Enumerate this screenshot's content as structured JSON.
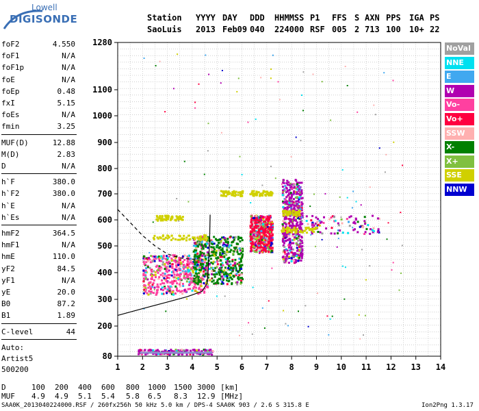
{
  "logo": {
    "line1": "Lowell",
    "line2": "DIGISONDE"
  },
  "header": {
    "row1": [
      "Station",
      "YYYY",
      "DAY",
      "DDD",
      "HHMMSS",
      "P1",
      "FFS",
      "S",
      "AXN",
      "PPS",
      "IGA",
      "PS"
    ],
    "row2": [
      "SaoLuis",
      "2013",
      "Feb09",
      "040",
      "224000",
      "RSF",
      "005",
      "2",
      "713",
      "100",
      "10+",
      "22"
    ]
  },
  "params": {
    "group1": [
      {
        "name": "foF2",
        "value": "4.550"
      },
      {
        "name": "foF1",
        "value": "N/A"
      },
      {
        "name": "foF1p",
        "value": "N/A"
      },
      {
        "name": "foE",
        "value": "N/A"
      },
      {
        "name": "foEp",
        "value": "0.48"
      },
      {
        "name": "fxI",
        "value": "5.15"
      },
      {
        "name": "foEs",
        "value": "N/A"
      },
      {
        "name": "fmin",
        "value": "3.25"
      }
    ],
    "group2": [
      {
        "name": "MUF(D)",
        "value": "12.88"
      },
      {
        "name": "M(D)",
        "value": "2.83"
      },
      {
        "name": "D",
        "value": "N/A"
      }
    ],
    "group3": [
      {
        "name": "h`F",
        "value": "380.0"
      },
      {
        "name": "h`F2",
        "value": "380.0"
      },
      {
        "name": "h`E",
        "value": "N/A"
      },
      {
        "name": "h`Es",
        "value": "N/A"
      }
    ],
    "group4": [
      {
        "name": "hmF2",
        "value": "364.5"
      },
      {
        "name": "hmF1",
        "value": "N/A"
      },
      {
        "name": "hmE",
        "value": "110.0"
      },
      {
        "name": "yF2",
        "value": "84.5"
      },
      {
        "name": "yF1",
        "value": "N/A"
      },
      {
        "name": "yE",
        "value": "20.0"
      },
      {
        "name": "B0",
        "value": "87.2"
      },
      {
        "name": "B1",
        "value": "1.89"
      }
    ],
    "group5": [
      {
        "name": "C-level",
        "value": "44"
      }
    ],
    "auto": [
      "Auto:",
      "Artist5",
      "500200"
    ]
  },
  "legend": [
    {
      "label": "NoVal",
      "color": "#a0a0a0"
    },
    {
      "label": "NNE",
      "color": "#00e0f0"
    },
    {
      "label": "E",
      "color": "#40a8f0"
    },
    {
      "label": "W",
      "color": "#b000b0"
    },
    {
      "label": "Vo-",
      "color": "#ff40a0"
    },
    {
      "label": "Vo+",
      "color": "#ff0040"
    },
    {
      "label": "SSW",
      "color": "#ffb0b0"
    },
    {
      "label": "X-",
      "color": "#008000"
    },
    {
      "label": "X+",
      "color": "#80c040"
    },
    {
      "label": "SSE",
      "color": "#d0d000"
    },
    {
      "label": "NNW",
      "color": "#0000d0"
    }
  ],
  "chart_data": {
    "type": "scatter",
    "x_ticks": [
      "1",
      "2",
      "3",
      "4",
      "5",
      "6",
      "7",
      "8",
      "9",
      "10",
      "11",
      "12",
      "13",
      "14"
    ],
    "y_ticks": [
      "80",
      "200",
      "300",
      "400",
      "500",
      "600",
      "700",
      "800",
      "900",
      "1000",
      "1100",
      "1280"
    ],
    "xlim": [
      1,
      14
    ],
    "ylim": [
      80,
      1280
    ],
    "grid": true,
    "clusters": [
      {
        "name": "F-trace low",
        "xrange": [
          2.0,
          4.6
        ],
        "yrange": [
          320,
          470
        ],
        "dominant": "Vo-"
      },
      {
        "name": "F-trace mid",
        "xrange": [
          4.0,
          6.0
        ],
        "yrange": [
          360,
          540
        ],
        "dominant": "X-"
      },
      {
        "name": "F-trace high",
        "xrange": [
          6.3,
          7.2
        ],
        "yrange": [
          480,
          620
        ],
        "dominant": "Vo+"
      },
      {
        "name": "foF2 region",
        "xrange": [
          7.6,
          8.4
        ],
        "yrange": [
          440,
          760
        ],
        "dominant": "W"
      },
      {
        "name": "oblique traces",
        "xrange": [
          8.5,
          11.5
        ],
        "yrange": [
          550,
          620
        ],
        "dominant": "W"
      },
      {
        "name": "E-layer echoes",
        "xrange": [
          1.8,
          4.8
        ],
        "yrange": [
          90,
          110
        ],
        "dominant": "W"
      }
    ],
    "profile_solid": [
      [
        1.0,
        240
      ],
      [
        2.0,
        265
      ],
      [
        3.0,
        290
      ],
      [
        3.8,
        310
      ],
      [
        4.4,
        330
      ],
      [
        4.6,
        360
      ],
      [
        4.65,
        420
      ],
      [
        4.7,
        520
      ],
      [
        4.72,
        620
      ]
    ],
    "profile_dashed": [
      [
        1.0,
        640
      ],
      [
        1.5,
        590
      ],
      [
        2.0,
        540
      ],
      [
        2.5,
        500
      ],
      [
        3.0,
        470
      ],
      [
        3.5,
        455
      ],
      [
        4.0,
        450
      ],
      [
        4.3,
        455
      ]
    ]
  },
  "bottom": {
    "d_label": "D",
    "d_values": [
      "100",
      "200",
      "400",
      "600",
      "800",
      "1000",
      "1500",
      "3000"
    ],
    "d_unit": "[km]",
    "muf_label": "MUF",
    "muf_values": [
      "4.9",
      "4.9",
      "5.1",
      "5.4",
      "5.8",
      "6.5",
      "8.3",
      "12.9"
    ],
    "muf_unit": "[MHz]",
    "footer": "SAA0K_2013040224000.RSF / 260fx256h 50 kHz 5.0 km / DPS-4 SAA0K 903 / 2.6 S 315.8 E",
    "version": "Ion2Png 1.3.17"
  }
}
